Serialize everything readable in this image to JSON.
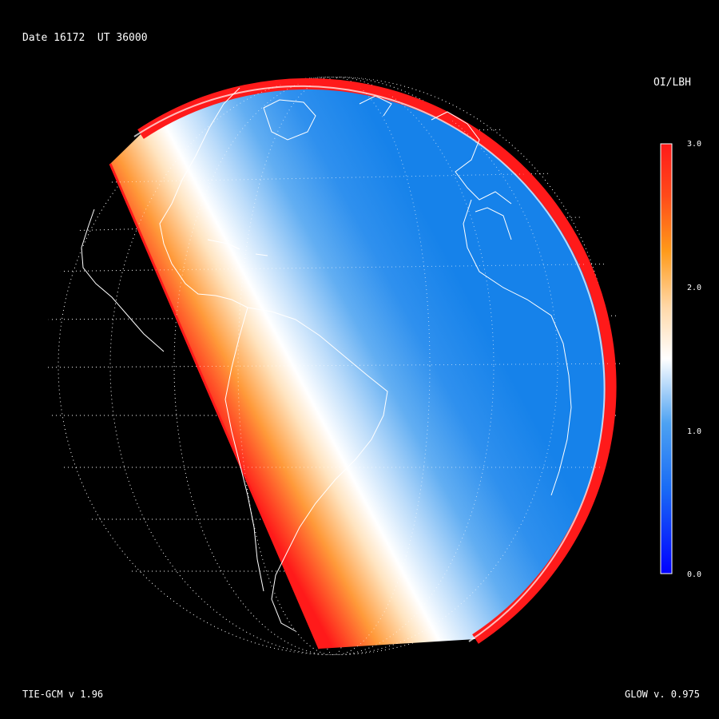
{
  "header": {
    "date_label": "Date 16172  UT 36000"
  },
  "colorbar": {
    "title": "OI/LBH",
    "ticks": [
      "3.0",
      "2.0",
      "1.0",
      "0.0"
    ],
    "range": [
      0.0,
      3.0
    ],
    "colors": {
      "low": "#0000ff",
      "mid_low": "#2f8cf0",
      "mid": "#ffffff",
      "mid_high": "#ff9a2a",
      "high": "#ff1a1a"
    }
  },
  "footer": {
    "left_label": "TIE-GCM v 1.96",
    "right_label": "GLOW v. 0.975"
  },
  "map": {
    "projection": "orthographic globe",
    "colors": {
      "day_ocean": "#1f8ef2",
      "terminator": "#ffffff",
      "limb": "#ff1a1a",
      "coast": "#ffffff",
      "grid": "#ffffff"
    }
  }
}
